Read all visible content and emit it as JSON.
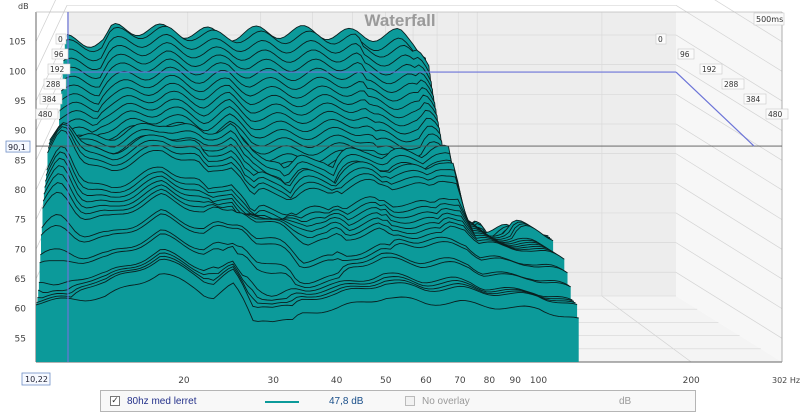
{
  "chart_data": {
    "type": "waterfall-3d",
    "title": "Waterfall",
    "ylabel": "dB",
    "xunit": "Hz",
    "x_ticks": [
      20,
      30,
      40,
      50,
      60,
      70,
      80,
      90,
      100,
      200
    ],
    "x_end_label": "302 Hz",
    "xlim": [
      10.22,
      302
    ],
    "y_ticks": [
      55,
      60,
      65,
      70,
      75,
      80,
      85,
      90,
      95,
      100,
      105
    ],
    "ylim": [
      51,
      110
    ],
    "time_unit": "ms",
    "time_ticks": [
      0,
      96,
      192,
      288,
      384,
      480
    ],
    "time_range_label": "500ms",
    "cursor": {
      "y_value_label": "90,1",
      "x_value_label": "10,22",
      "y_db": 90.1
    },
    "grid": true,
    "surface_color": "#0c9a9a",
    "series": [
      {
        "name": "80hz med lerret",
        "level_label": "47,8 dB",
        "color": "#0c9a9a",
        "slices": 44,
        "front_profile": [
          [
            10.22,
            57
          ],
          [
            14,
            58
          ],
          [
            18,
            62
          ],
          [
            22,
            59
          ],
          [
            25,
            62
          ],
          [
            28,
            57
          ],
          [
            30,
            56
          ],
          [
            35,
            55.5
          ],
          [
            40,
            56
          ],
          [
            50,
            58
          ],
          [
            60,
            57
          ],
          [
            65,
            57
          ],
          [
            70,
            57
          ],
          [
            80,
            56.5
          ],
          [
            90,
            56
          ],
          [
            100,
            56
          ],
          [
            110,
            55
          ],
          [
            120,
            54
          ]
        ],
        "back_profile": [
          [
            10.22,
            94
          ],
          [
            15,
            94
          ],
          [
            20,
            93.5
          ],
          [
            25,
            93
          ],
          [
            30,
            93.5
          ],
          [
            35,
            93.5
          ],
          [
            40,
            93.5
          ],
          [
            50,
            93
          ],
          [
            60,
            93
          ],
          [
            65,
            93
          ],
          [
            70,
            92
          ],
          [
            75,
            90
          ],
          [
            80,
            60
          ],
          [
            90,
            56
          ],
          [
            100,
            55
          ],
          [
            120,
            54
          ]
        ],
        "ridges": [
          {
            "hz": 11,
            "db_top": 94,
            "start": 0.02,
            "end": 1.0
          },
          {
            "hz": 25,
            "db_top": 77,
            "start": 0.0,
            "end": 0.45
          },
          {
            "hz": 30,
            "db_top": 78,
            "start": 0.0,
            "end": 0.55
          },
          {
            "hz": 37,
            "db_top": 78,
            "start": 0.1,
            "end": 0.55
          },
          {
            "hz": 47,
            "db_top": 80,
            "start": 0.15,
            "end": 0.55
          },
          {
            "hz": 60,
            "db_top": 87,
            "start": 0.2,
            "end": 0.95
          },
          {
            "hz": 88,
            "db_top": 81,
            "start": 0.35,
            "end": 0.95
          }
        ]
      }
    ],
    "overlay_label": "No overlay",
    "overlay_unit": "dB"
  }
}
